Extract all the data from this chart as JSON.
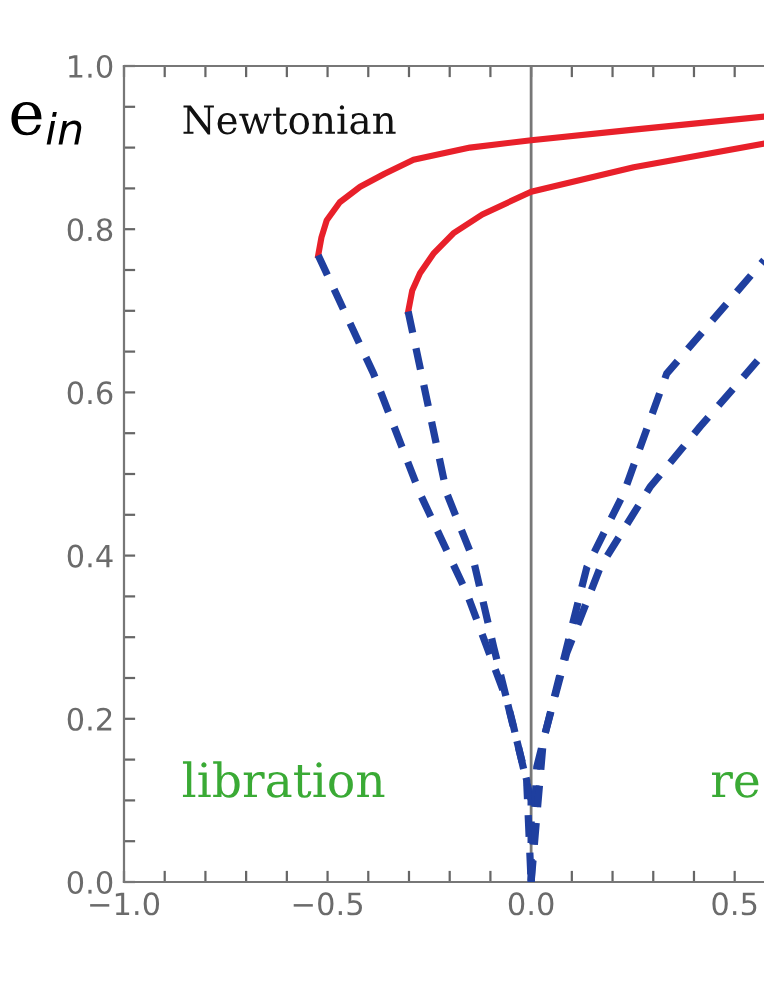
{
  "chart_data": {
    "type": "line",
    "ylabel": "e$_{in}$",
    "xlim": [
      -1.0,
      0.572
    ],
    "ylim": [
      0.0,
      1.0
    ],
    "xticks": [
      {
        "value": -1.0,
        "label": "−1.0"
      },
      {
        "value": -0.9,
        "label": null
      },
      {
        "value": -0.8,
        "label": null
      },
      {
        "value": -0.7,
        "label": null
      },
      {
        "value": -0.6,
        "label": null
      },
      {
        "value": -0.5,
        "label": "−0.5"
      },
      {
        "value": -0.4,
        "label": null
      },
      {
        "value": -0.3,
        "label": null
      },
      {
        "value": -0.2,
        "label": null
      },
      {
        "value": -0.1,
        "label": null
      },
      {
        "value": 0.0,
        "label": "0.0"
      },
      {
        "value": 0.1,
        "label": null
      },
      {
        "value": 0.2,
        "label": null
      },
      {
        "value": 0.3,
        "label": null
      },
      {
        "value": 0.4,
        "label": null
      },
      {
        "value": 0.5,
        "label": "0.5"
      }
    ],
    "yticks": [
      {
        "value": 0.0,
        "label": "0.0"
      },
      {
        "value": 0.05,
        "label": null
      },
      {
        "value": 0.1,
        "label": null
      },
      {
        "value": 0.15,
        "label": null
      },
      {
        "value": 0.2,
        "label": "0.2"
      },
      {
        "value": 0.25,
        "label": null
      },
      {
        "value": 0.3,
        "label": null
      },
      {
        "value": 0.35,
        "label": null
      },
      {
        "value": 0.4,
        "label": "0.4"
      },
      {
        "value": 0.45,
        "label": null
      },
      {
        "value": 0.5,
        "label": null
      },
      {
        "value": 0.55,
        "label": null
      },
      {
        "value": 0.6,
        "label": "0.6"
      },
      {
        "value": 0.65,
        "label": null
      },
      {
        "value": 0.7,
        "label": null
      },
      {
        "value": 0.75,
        "label": null
      },
      {
        "value": 0.8,
        "label": "0.8"
      },
      {
        "value": 0.85,
        "label": null
      },
      {
        "value": 0.9,
        "label": null
      },
      {
        "value": 0.95,
        "label": null
      },
      {
        "value": 1.0,
        "label": "1.0"
      }
    ],
    "grid": false,
    "marker": "none",
    "ref_lines": [
      {
        "axis": "x",
        "value": 0.0,
        "color": "#777777",
        "line_style": "solid"
      }
    ],
    "annotations": [
      "Newtonian",
      "libration",
      "re"
    ],
    "series": [
      {
        "color": "#e8202a",
        "line_style": "solid",
        "x": [
          -0.523,
          -0.515,
          -0.502,
          -0.47,
          -0.42,
          -0.36,
          -0.289,
          -0.15,
          0.0,
          0.252,
          0.572
        ],
        "values": [
          0.768,
          0.79,
          0.811,
          0.833,
          0.852,
          0.868,
          0.885,
          0.9,
          0.909,
          0.922,
          0.938
        ]
      },
      {
        "color": "#e8202a",
        "line_style": "solid",
        "x": [
          -0.302,
          -0.292,
          -0.273,
          -0.24,
          -0.191,
          -0.12,
          0.0,
          0.252,
          0.572
        ],
        "values": [
          0.699,
          0.725,
          0.746,
          0.77,
          0.795,
          0.818,
          0.846,
          0.876,
          0.905
        ]
      },
      {
        "color": "#1f3f9f",
        "line_style": "dashed",
        "x": [
          -0.523,
          -0.387,
          -0.273,
          -0.158,
          -0.06,
          -0.011,
          0.0
        ],
        "values": [
          0.768,
          0.623,
          0.476,
          0.354,
          0.223,
          0.125,
          0.0
        ]
      },
      {
        "color": "#1f3f9f",
        "line_style": "dashed",
        "x": [
          -0.302,
          -0.256,
          -0.207,
          -0.142,
          -0.092,
          -0.043,
          0.0,
          0.0
        ],
        "values": [
          0.699,
          0.591,
          0.476,
          0.395,
          0.288,
          0.19,
          0.1,
          0.0
        ]
      },
      {
        "color": "#1f3f9f",
        "line_style": "dashed",
        "x": [
          0.0,
          0.014,
          0.055,
          0.137,
          0.227,
          0.333,
          0.572
        ],
        "values": [
          0.0,
          0.141,
          0.223,
          0.386,
          0.476,
          0.623,
          0.762
        ]
      },
      {
        "color": "#1f3f9f",
        "line_style": "dashed",
        "x": [
          0.0,
          0.03,
          0.087,
          0.17,
          0.292,
          0.415,
          0.572
        ],
        "values": [
          0.0,
          0.174,
          0.28,
          0.386,
          0.484,
          0.558,
          0.648
        ]
      }
    ]
  }
}
